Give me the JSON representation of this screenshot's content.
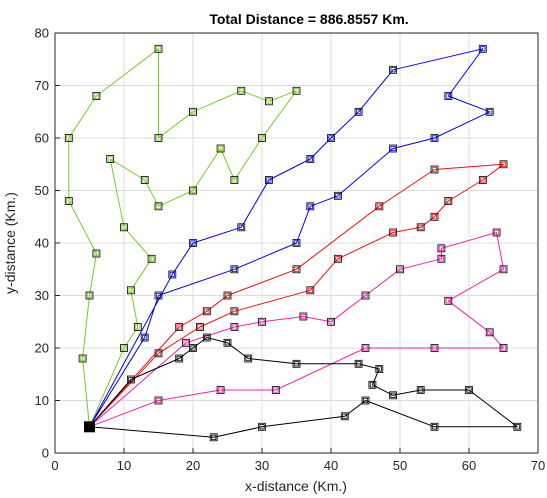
{
  "chart_data": {
    "type": "line",
    "title": "Total Distance = 886.8557 Km.",
    "xlabel": "x-distance (Km.)",
    "ylabel": "y-distance (Km.)",
    "xlim": [
      0,
      70
    ],
    "ylim": [
      0,
      80
    ],
    "xticks": [
      "0",
      "10",
      "20",
      "30",
      "40",
      "50",
      "60",
      "70"
    ],
    "yticks": [
      "0",
      "10",
      "20",
      "30",
      "40",
      "50",
      "60",
      "70",
      "80"
    ],
    "grid": true,
    "depot": {
      "x": 5,
      "y": 5,
      "color": "#000000",
      "marker": "filled-square"
    },
    "series": [
      {
        "color": "#77cc22",
        "points": [
          [
            5,
            5
          ],
          [
            4,
            18
          ],
          [
            5,
            30
          ],
          [
            6,
            38
          ],
          [
            2,
            48
          ],
          [
            2,
            60
          ],
          [
            6,
            68
          ],
          [
            15,
            77
          ],
          [
            15,
            60
          ],
          [
            20,
            65
          ],
          [
            27,
            69
          ],
          [
            31,
            67
          ],
          [
            35,
            69
          ],
          [
            30,
            60
          ],
          [
            26,
            52
          ],
          [
            24,
            58
          ],
          [
            20,
            50
          ],
          [
            15,
            47
          ],
          [
            13,
            52
          ],
          [
            8,
            56
          ],
          [
            10,
            43
          ],
          [
            14,
            37
          ],
          [
            11,
            31
          ],
          [
            12,
            24
          ],
          [
            10,
            20
          ],
          [
            5,
            5
          ]
        ]
      },
      {
        "color": "#0000ee",
        "points": [
          [
            5,
            5
          ],
          [
            17,
            34
          ],
          [
            20,
            40
          ],
          [
            27,
            43
          ],
          [
            31,
            52
          ],
          [
            37,
            56
          ],
          [
            40,
            60
          ],
          [
            44,
            65
          ],
          [
            49,
            73
          ],
          [
            62,
            77
          ],
          [
            57,
            68
          ],
          [
            63,
            65
          ],
          [
            55,
            60
          ],
          [
            49,
            58
          ],
          [
            41,
            49
          ],
          [
            37,
            47
          ],
          [
            35,
            40
          ],
          [
            26,
            35
          ],
          [
            15,
            30
          ],
          [
            13,
            22
          ],
          [
            5,
            5
          ]
        ]
      },
      {
        "color": "#ee1111",
        "points": [
          [
            5,
            5
          ],
          [
            18,
            24
          ],
          [
            22,
            27
          ],
          [
            25,
            30
          ],
          [
            35,
            35
          ],
          [
            47,
            47
          ],
          [
            55,
            54
          ],
          [
            65,
            55
          ],
          [
            62,
            52
          ],
          [
            57,
            48
          ],
          [
            55,
            45
          ],
          [
            53,
            43
          ],
          [
            49,
            42
          ],
          [
            41,
            37
          ],
          [
            37,
            31
          ],
          [
            26,
            27
          ],
          [
            21,
            24
          ],
          [
            15,
            19
          ],
          [
            5,
            5
          ]
        ]
      },
      {
        "color": "#ee22aa",
        "points": [
          [
            5,
            5
          ],
          [
            19,
            21
          ],
          [
            26,
            24
          ],
          [
            30,
            25
          ],
          [
            36,
            26
          ],
          [
            40,
            25
          ],
          [
            45,
            30
          ],
          [
            50,
            35
          ],
          [
            56,
            37
          ],
          [
            56,
            39
          ],
          [
            64,
            42
          ],
          [
            65,
            35
          ],
          [
            57,
            29
          ],
          [
            63,
            23
          ],
          [
            65,
            20
          ],
          [
            55,
            20
          ],
          [
            45,
            20
          ],
          [
            32,
            12
          ],
          [
            24,
            12
          ],
          [
            15,
            10
          ],
          [
            5,
            5
          ]
        ]
      },
      {
        "color": "#000000",
        "points": [
          [
            5,
            5
          ],
          [
            11,
            14
          ],
          [
            18,
            18
          ],
          [
            20,
            20
          ],
          [
            22,
            22
          ],
          [
            25,
            21
          ],
          [
            28,
            18
          ],
          [
            35,
            17
          ],
          [
            44,
            17
          ],
          [
            47,
            16
          ],
          [
            46,
            13
          ],
          [
            49,
            11
          ],
          [
            53,
            12
          ],
          [
            60,
            12
          ],
          [
            67,
            5
          ],
          [
            55,
            5
          ],
          [
            45,
            10
          ],
          [
            42,
            7
          ],
          [
            30,
            5
          ],
          [
            23,
            3
          ],
          [
            5,
            5
          ]
        ]
      }
    ]
  }
}
